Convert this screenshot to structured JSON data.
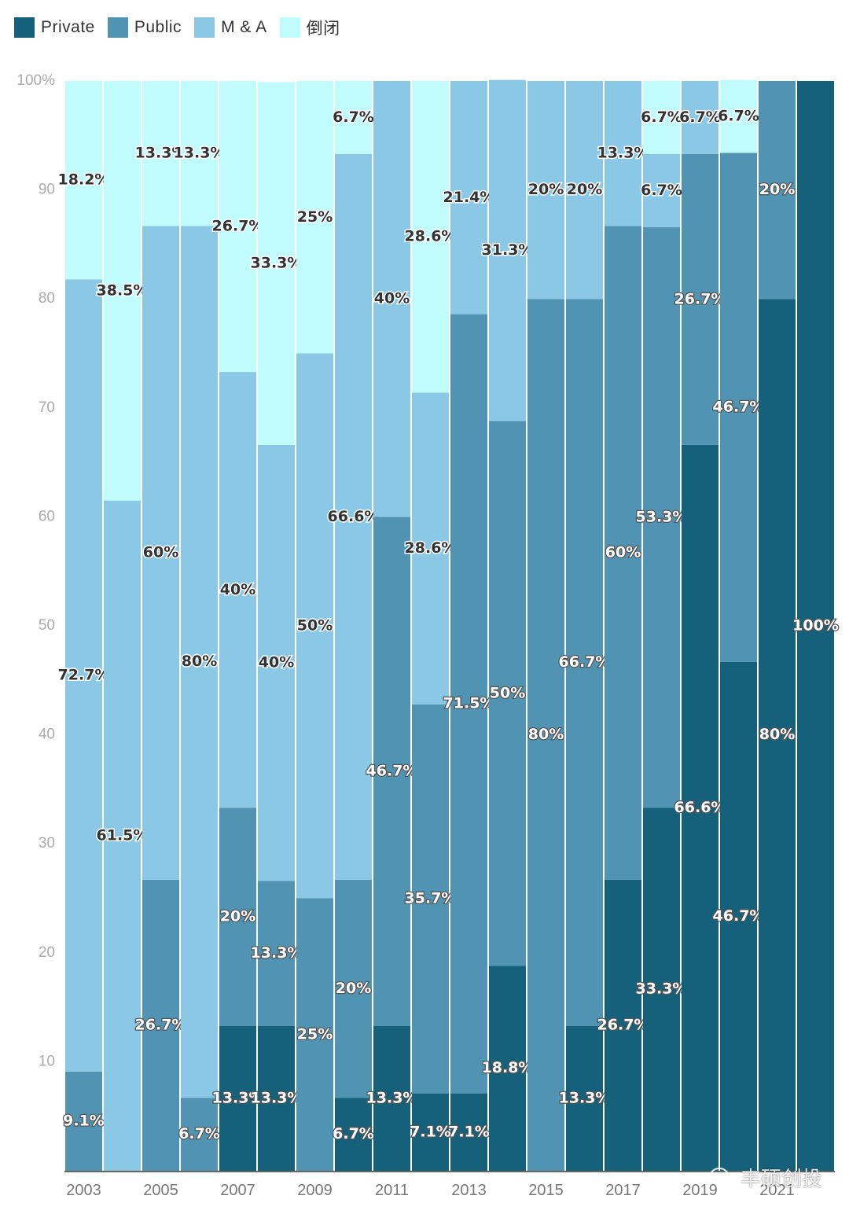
{
  "colors": {
    "Private": "#15607a",
    "Public": "#5193b2",
    "M&A": "#8bc8e5",
    "倒闭": "#c0fcfc"
  },
  "legend": [
    {
      "key": "Private",
      "label": "Private"
    },
    {
      "key": "Public",
      "label": "Public"
    },
    {
      "key": "M&A",
      "label": "M & A"
    },
    {
      "key": "倒闭",
      "label": "倒闭"
    }
  ],
  "watermark": "丰硕创投",
  "chart_data": {
    "type": "bar",
    "stacked": true,
    "title": "",
    "xlabel": "",
    "ylabel": "",
    "ylim": [
      0,
      100
    ],
    "y_ticks": [
      10,
      20,
      30,
      40,
      50,
      60,
      70,
      80,
      90,
      100
    ],
    "y_tick_labels": [
      "10",
      "20",
      "30",
      "40",
      "50",
      "60",
      "70",
      "80",
      "90",
      "100%"
    ],
    "categories": [
      "2003",
      "2004",
      "2005",
      "2006",
      "2007",
      "2008",
      "2009",
      "2010",
      "2011",
      "2012",
      "2013",
      "2014",
      "2015",
      "2016",
      "2017",
      "2018",
      "2019",
      "2020",
      "2021",
      "2022"
    ],
    "x_tick_labels": [
      "2003",
      "",
      "2005",
      "",
      "2007",
      "",
      "2009",
      "",
      "2011",
      "",
      "2013",
      "",
      "2015",
      "",
      "2017",
      "",
      "2019",
      "",
      "2021",
      ""
    ],
    "series": [
      {
        "name": "Private",
        "values": [
          0,
          0,
          0,
          0,
          13.3,
          13.3,
          0,
          6.7,
          13.3,
          7.1,
          7.1,
          18.8,
          0,
          13.3,
          26.7,
          33.3,
          66.6,
          46.7,
          80,
          100
        ],
        "labels": [
          "",
          "",
          "",
          "",
          "13.3%",
          "13.3%",
          "",
          "6.7%",
          "13.3%",
          "7.1%",
          "7.1%",
          "18.8%",
          "",
          "13.3%",
          "26.7%",
          "33.3%",
          "66.6%",
          "46.7%",
          "80%",
          "100%"
        ]
      },
      {
        "name": "Public",
        "values": [
          9.1,
          0,
          26.7,
          6.7,
          20,
          13.3,
          25,
          20,
          46.7,
          35.7,
          71.5,
          50,
          80,
          66.7,
          60,
          53.3,
          26.7,
          46.7,
          20,
          0
        ],
        "labels": [
          "9.1%",
          "",
          "26.7%",
          "6.7%",
          "20%",
          "13.3%",
          "25%",
          "20%",
          "46.7%",
          "35.7%",
          "71.5%",
          "50%",
          "80%",
          "66.7%",
          "60%",
          "53.3%",
          "26.7%",
          "46.7%",
          "20%",
          ""
        ]
      },
      {
        "name": "M&A",
        "values": [
          72.7,
          61.5,
          60,
          80,
          40,
          40,
          50,
          66.6,
          40,
          28.6,
          21.4,
          31.3,
          20,
          20,
          13.3,
          6.7,
          6.7,
          0,
          0,
          0
        ],
        "labels": [
          "72.7%",
          "61.5%",
          "60%",
          "80%",
          "40%",
          "40%",
          "50%",
          "66.6%",
          "40%",
          "28.6%",
          "21.4%",
          "31.3%",
          "20%",
          "20%",
          "13.3%",
          "6.7%",
          "6.7%",
          "",
          "",
          ""
        ]
      },
      {
        "name": "倒闭",
        "values": [
          18.2,
          38.5,
          13.3,
          13.3,
          26.7,
          33.3,
          25,
          6.7,
          0,
          28.6,
          0,
          0,
          0,
          0,
          0,
          6.7,
          0,
          6.7,
          0,
          0
        ],
        "labels": [
          "18.2%",
          "38.5%",
          "13.3%",
          "13.3%",
          "26.7%",
          "33.3%",
          "25%",
          "6.7%",
          "",
          "28.6%",
          "",
          "",
          "",
          "",
          "",
          "6.7%",
          "",
          "6.7%",
          "",
          ""
        ]
      }
    ]
  }
}
